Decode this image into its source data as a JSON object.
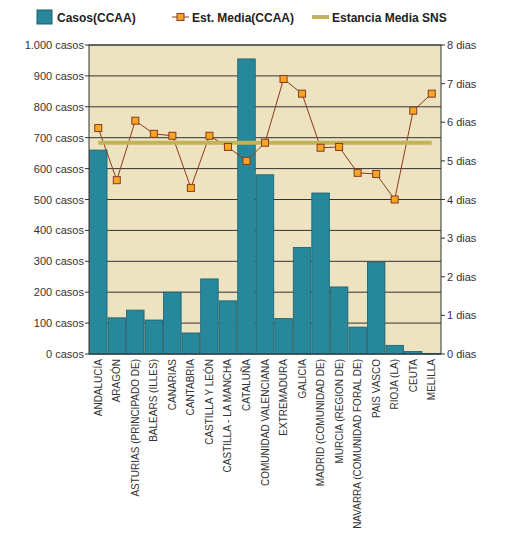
{
  "chart_data": {
    "type": "bar",
    "categories": [
      "ANDALUCÍA",
      "ARAGÓN",
      "ASTURIAS (PRINCIPADO DE)",
      "BALEARS (ILLES)",
      "CANARIAS",
      "CANTABRIA",
      "CASTILLA Y LEÓN",
      "CASTILLA - LA MANCHA",
      "CATALUÑA",
      "COMUNIDAD VALENCIANA",
      "EXTREMADURA",
      "GALICIA",
      "MADRID (COMUNIDAD DE)",
      "MURCIA (REGION DE)",
      "NAVARRA (COMUNIDAD FORAL DE)",
      "PAIS VASCO",
      "RIOJA (LA)",
      "CEUTA",
      "MELILLA"
    ],
    "series": [
      {
        "name": "Casos(CCAA)",
        "type": "bar",
        "color": "#27889c",
        "values": [
          660,
          117,
          142,
          110,
          200,
          68,
          243,
          172,
          955,
          580,
          115,
          345,
          521,
          217,
          87,
          297,
          28,
          8,
          2
        ]
      },
      {
        "name": "Est. Media(CCAA)",
        "type": "line",
        "axis": "y2",
        "color": "#8b3a1e",
        "marker": "square",
        "values": [
          5.85,
          4.5,
          6.04,
          5.7,
          5.65,
          4.3,
          5.65,
          5.36,
          5.0,
          5.47,
          7.12,
          6.74,
          5.34,
          5.36,
          4.69,
          4.66,
          4.0,
          6.3,
          6.74
        ]
      },
      {
        "name": "Estancia Media SNS",
        "type": "line",
        "axis": "y2",
        "color": "#c2b25a",
        "marker": "none",
        "values": [
          5.47,
          5.47,
          5.47,
          5.47,
          5.47,
          5.47,
          5.47,
          5.47,
          5.47,
          5.47,
          5.47,
          5.47,
          5.47,
          5.47,
          5.47,
          5.47,
          5.47,
          5.47,
          5.47
        ]
      }
    ],
    "ylim": [
      0,
      1000
    ],
    "yticks": [
      {
        "value": 0,
        "label": "0 casos"
      },
      {
        "value": 100,
        "label": "100 casos"
      },
      {
        "value": 200,
        "label": "200 casos"
      },
      {
        "value": 300,
        "label": "300 casos"
      },
      {
        "value": 400,
        "label": "400 casos"
      },
      {
        "value": 500,
        "label": "500 casos"
      },
      {
        "value": 600,
        "label": "600 casos"
      },
      {
        "value": 700,
        "label": "700 casos"
      },
      {
        "value": 800,
        "label": "800 casos"
      },
      {
        "value": 900,
        "label": "900 casos"
      },
      {
        "value": 1000,
        "label": "1.000 casos"
      }
    ],
    "y2lim": [
      0,
      8
    ],
    "y2ticks": [
      {
        "value": 0,
        "label": "0 dias"
      },
      {
        "value": 1,
        "label": "1 dias"
      },
      {
        "value": 2,
        "label": "2 dias"
      },
      {
        "value": 3,
        "label": "3 dias"
      },
      {
        "value": 4,
        "label": "4 dias"
      },
      {
        "value": 5,
        "label": "5 dias"
      },
      {
        "value": 6,
        "label": "6 dias"
      },
      {
        "value": 7,
        "label": "7 dias"
      },
      {
        "value": 8,
        "label": "8 dias"
      }
    ],
    "grid": true,
    "legend": "top"
  }
}
